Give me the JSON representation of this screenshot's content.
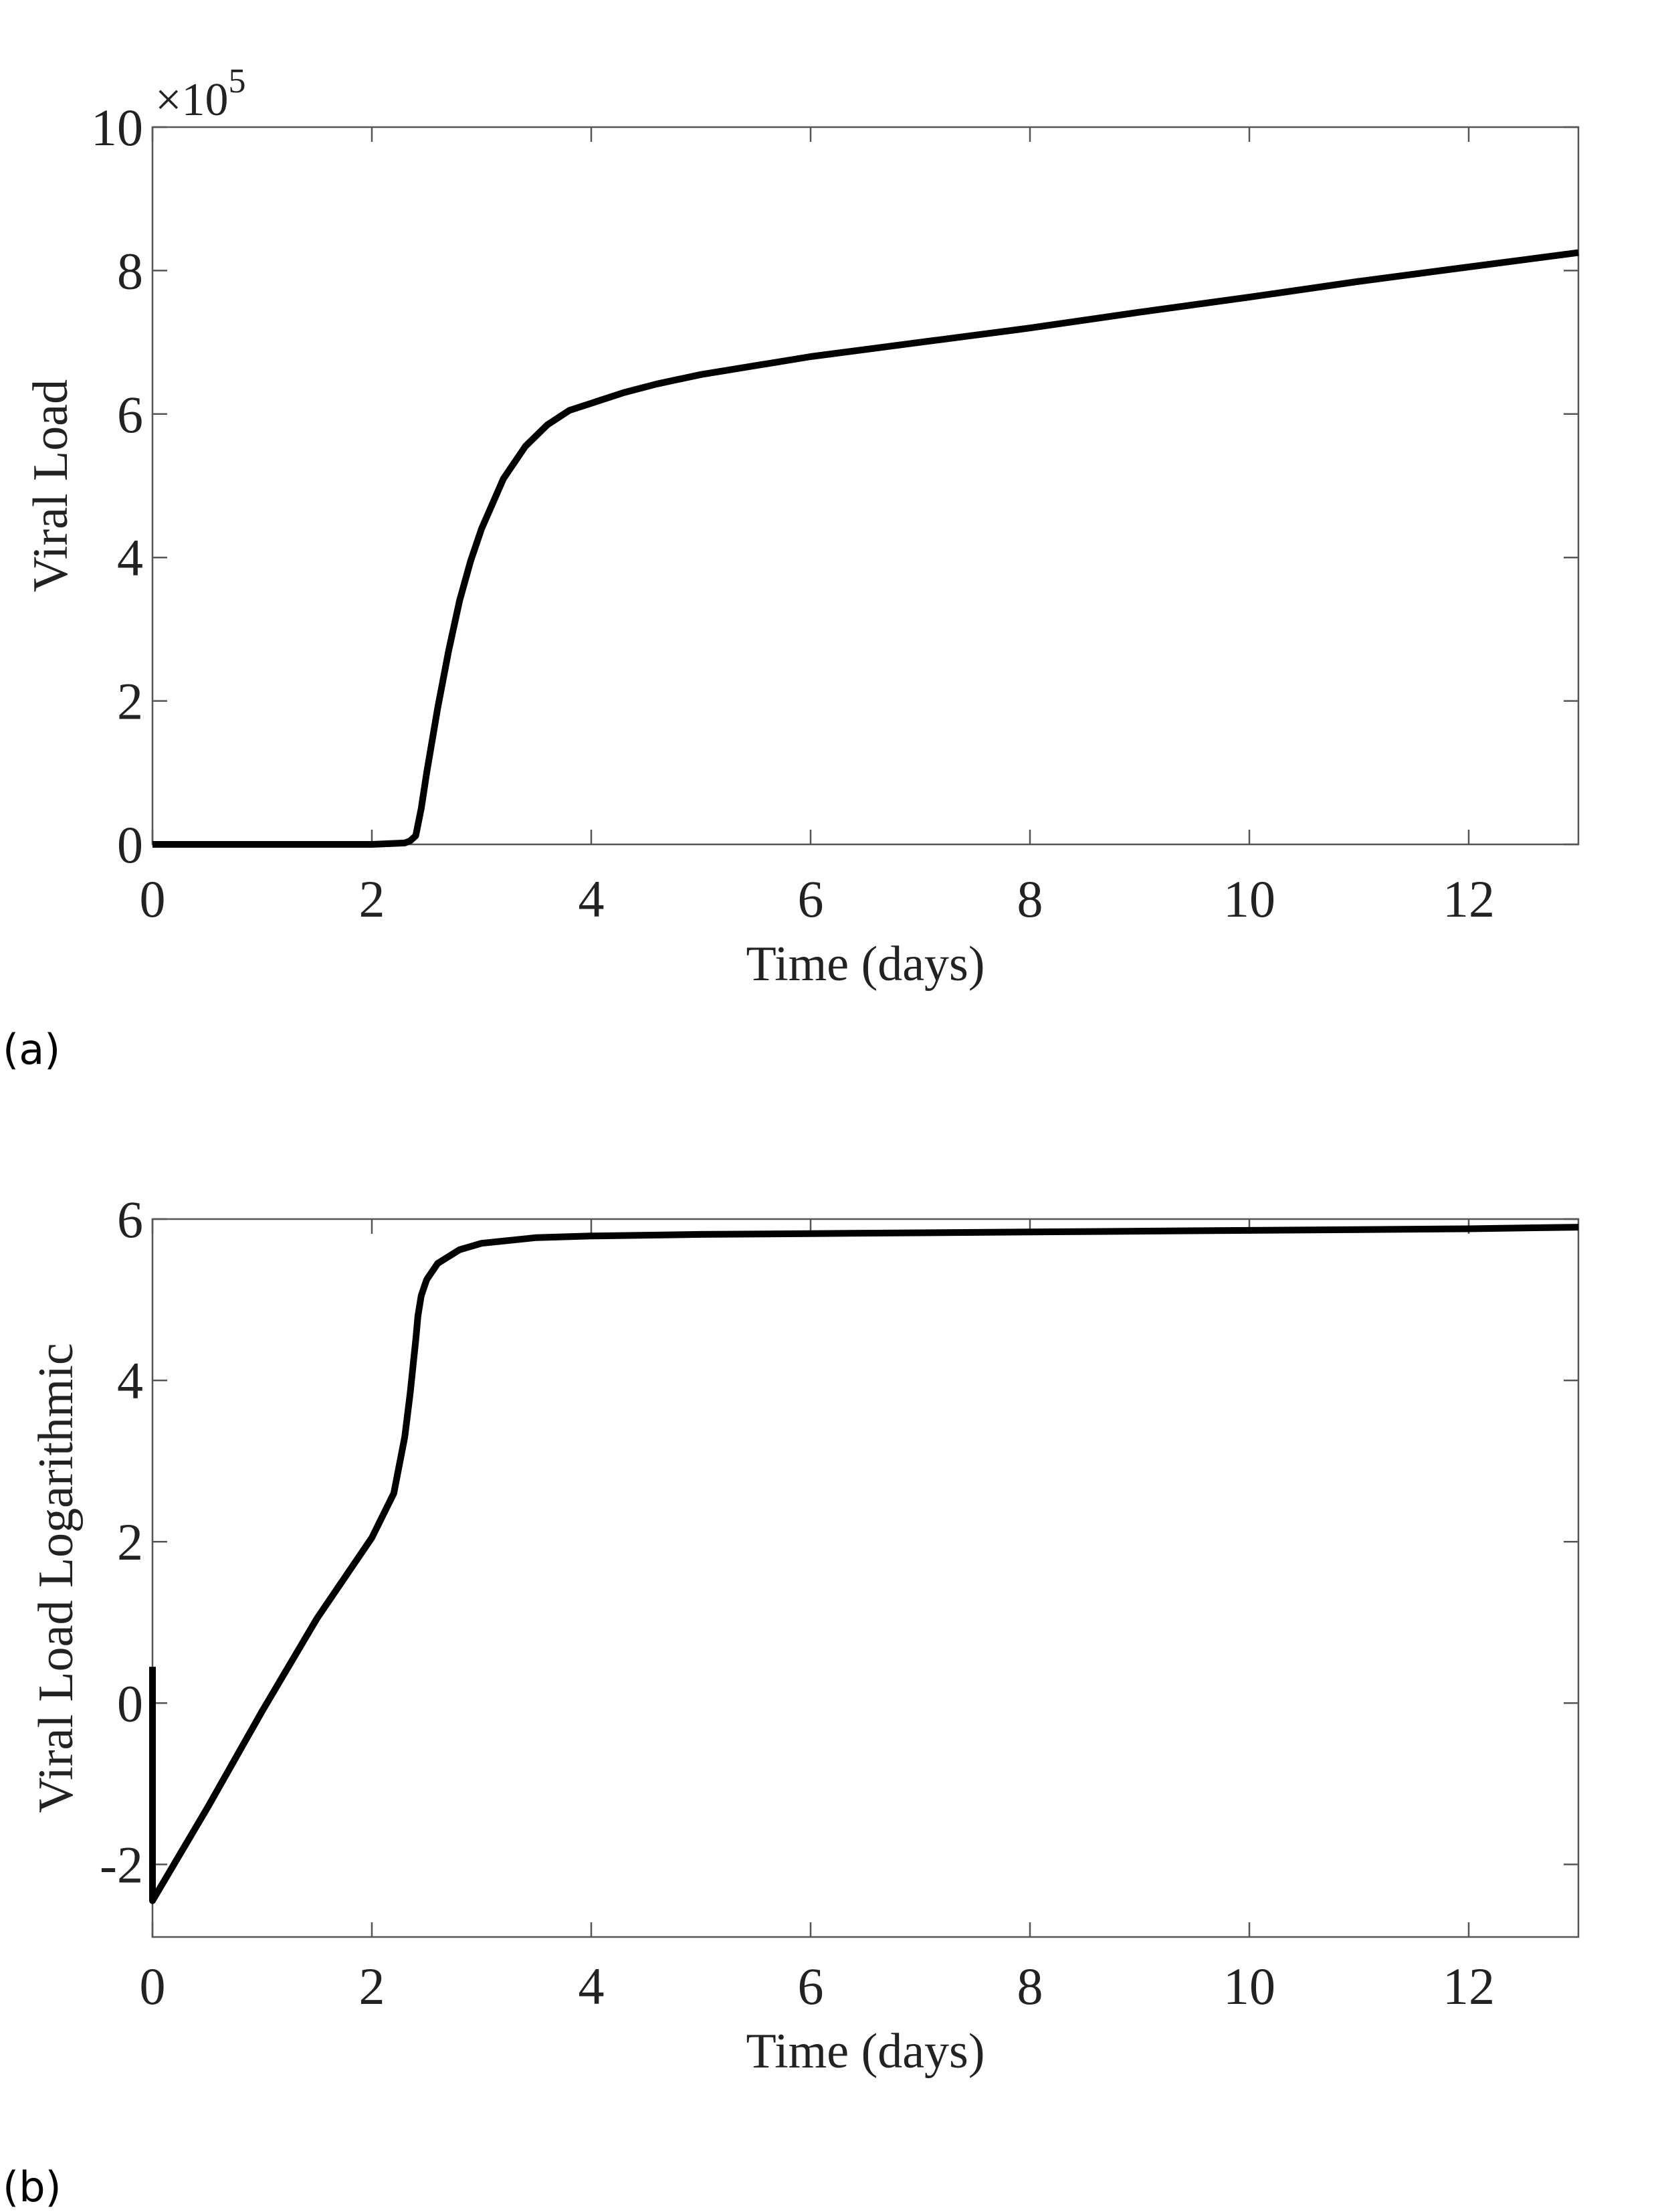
{
  "colors": {
    "line": "#000000",
    "frame": "#555555",
    "text": "#222222"
  },
  "chart_data": [
    {
      "type": "line",
      "panel_label": "(a)",
      "panel_letter": "a",
      "xlabel": "Time (days)",
      "ylabel": "Viral Load",
      "y_exponent_base": "×10",
      "y_exponent_power": "5",
      "xlim": [
        0,
        13
      ],
      "ylim": [
        0,
        10
      ],
      "xticks": [
        0,
        2,
        4,
        6,
        8,
        10,
        12
      ],
      "yticks": [
        0,
        2,
        4,
        6,
        8,
        10
      ],
      "xtick_labels": [
        "0",
        "2",
        "4",
        "6",
        "8",
        "10",
        "12"
      ],
      "ytick_labels": [
        "0",
        "2",
        "4",
        "6",
        "8",
        "10"
      ],
      "series": [
        {
          "name": "Viral Load",
          "x": [
            0,
            1,
            2,
            2.3,
            2.35,
            2.4,
            2.45,
            2.5,
            2.6,
            2.7,
            2.8,
            2.9,
            3.0,
            3.2,
            3.4,
            3.6,
            3.8,
            4.0,
            4.3,
            4.6,
            5.0,
            6.0,
            7.0,
            8.0,
            9.0,
            10.0,
            11.0,
            12.0,
            13.0
          ],
          "y": [
            0,
            0,
            0,
            0.02,
            0.05,
            0.12,
            0.5,
            1.0,
            1.9,
            2.7,
            3.4,
            3.95,
            4.4,
            5.1,
            5.55,
            5.85,
            6.05,
            6.15,
            6.3,
            6.42,
            6.55,
            6.8,
            7.0,
            7.2,
            7.42,
            7.63,
            7.85,
            8.05,
            8.25
          ]
        }
      ]
    },
    {
      "type": "line",
      "panel_label": "(b)",
      "panel_letter": "b",
      "xlabel": "Time (days)",
      "ylabel": "Viral Load Logarithmic",
      "xlim": [
        0,
        13
      ],
      "ylim": [
        -2.9,
        6
      ],
      "xticks": [
        0,
        2,
        4,
        6,
        8,
        10,
        12
      ],
      "yticks": [
        -2,
        0,
        2,
        4,
        6
      ],
      "xtick_labels": [
        "0",
        "2",
        "4",
        "6",
        "8",
        "10",
        "12"
      ],
      "ytick_labels": [
        "-2",
        "0",
        "2",
        "4",
        "6"
      ],
      "series": [
        {
          "name": "Viral Load Logarithmic",
          "x": [
            0,
            0,
            0.5,
            1.0,
            1.5,
            2.0,
            2.2,
            2.3,
            2.35,
            2.4,
            2.42,
            2.45,
            2.5,
            2.6,
            2.8,
            3.0,
            3.5,
            4.0,
            5.0,
            6.0,
            8.0,
            10.0,
            12.0,
            13.0
          ],
          "y": [
            0.45,
            -2.45,
            -1.3,
            -0.1,
            1.05,
            2.05,
            2.6,
            3.3,
            3.85,
            4.5,
            4.8,
            5.05,
            5.25,
            5.45,
            5.62,
            5.7,
            5.77,
            5.79,
            5.81,
            5.82,
            5.84,
            5.86,
            5.88,
            5.9
          ]
        }
      ]
    }
  ]
}
